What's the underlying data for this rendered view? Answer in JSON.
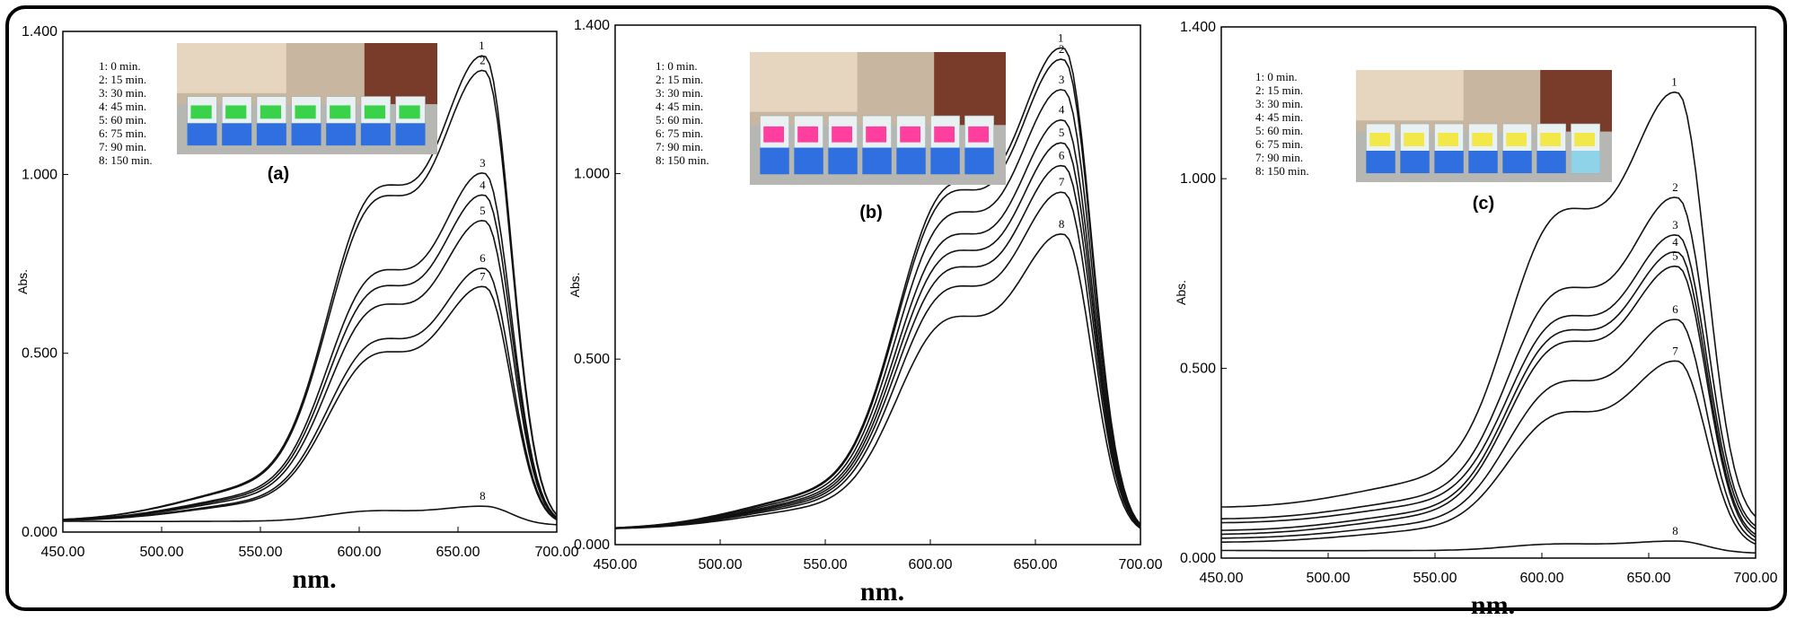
{
  "chart_data": [
    {
      "type": "line",
      "panel_label": "(a)",
      "xlabel": "nm.",
      "ylabel": "Abs.",
      "xlim": [
        450,
        700
      ],
      "ylim": [
        0,
        1.4
      ],
      "x_ticks": [
        "450.00",
        "500.00",
        "550.00",
        "600.00",
        "650.00",
        "700.00"
      ],
      "y_ticks": [
        "0.000",
        "0.500",
        "1.000",
        "1.400"
      ],
      "legend": [
        "1: 0 min.",
        "2: 15 min.",
        "3: 30 min.",
        "4: 45 min.",
        "5: 60 min.",
        "6: 75 min.",
        "7: 90 min.",
        "8: 150 min."
      ],
      "photo": {
        "label_color": "#3ad24a",
        "beakers": 7
      },
      "series": [
        {
          "name": "1",
          "peak": 1.31,
          "shoulder": 0.77,
          "base": 0.03
        },
        {
          "name": "2",
          "peak": 1.27,
          "shoulder": 0.74,
          "base": 0.03
        },
        {
          "name": "3",
          "peak": 0.99,
          "shoulder": 0.58,
          "base": 0.03
        },
        {
          "name": "4",
          "peak": 0.93,
          "shoulder": 0.55,
          "base": 0.03
        },
        {
          "name": "5",
          "peak": 0.86,
          "shoulder": 0.51,
          "base": 0.03
        },
        {
          "name": "6",
          "peak": 0.73,
          "shoulder": 0.43,
          "base": 0.03
        },
        {
          "name": "7",
          "peak": 0.68,
          "shoulder": 0.4,
          "base": 0.03
        },
        {
          "name": "8",
          "peak": 0.08,
          "shoulder": 0.05,
          "base": 0.03
        }
      ]
    },
    {
      "type": "line",
      "panel_label": "(b)",
      "xlabel": "nm.",
      "ylabel": "Abs.",
      "xlim": [
        450,
        700
      ],
      "ylim": [
        0,
        1.4
      ],
      "x_ticks": [
        "450.00",
        "500.00",
        "550.00",
        "600.00",
        "650.00",
        "700.00"
      ],
      "y_ticks": [
        "0.000",
        "0.500",
        "1.000",
        "1.400"
      ],
      "legend": [
        "1: 0 min.",
        "2: 15 min.",
        "3: 30 min.",
        "4: 45 min.",
        "5: 60 min.",
        "6: 75 min.",
        "7: 90 min.",
        "8: 150 min."
      ],
      "photo": {
        "label_color": "#ff3f9e",
        "beakers": 7
      },
      "series": [
        {
          "name": "1",
          "peak": 1.32,
          "shoulder": 0.78,
          "base": 0.04
        },
        {
          "name": "2",
          "peak": 1.29,
          "shoulder": 0.76,
          "base": 0.04
        },
        {
          "name": "3",
          "peak": 1.21,
          "shoulder": 0.72,
          "base": 0.04
        },
        {
          "name": "4",
          "peak": 1.13,
          "shoulder": 0.67,
          "base": 0.04
        },
        {
          "name": "5",
          "peak": 1.07,
          "shoulder": 0.63,
          "base": 0.04
        },
        {
          "name": "6",
          "peak": 1.01,
          "shoulder": 0.6,
          "base": 0.04
        },
        {
          "name": "7",
          "peak": 0.94,
          "shoulder": 0.56,
          "base": 0.04
        },
        {
          "name": "8",
          "peak": 0.83,
          "shoulder": 0.49,
          "base": 0.04
        }
      ]
    },
    {
      "type": "line",
      "panel_label": "(c)",
      "xlabel": "nm.",
      "ylabel": "Abs.",
      "xlim": [
        450,
        700
      ],
      "ylim": [
        0,
        1.4
      ],
      "x_ticks": [
        "450.00",
        "500.00",
        "550.00",
        "600.00",
        "650.00",
        "700.00"
      ],
      "y_ticks": [
        "0.000",
        "0.500",
        "1.000",
        "1.400"
      ],
      "legend": [
        "1: 0 min.",
        "2: 15 min.",
        "3: 30 min.",
        "4: 45 min.",
        "5: 60 min.",
        "6: 75 min.",
        "7: 90 min.",
        "8: 150 min."
      ],
      "photo": {
        "label_color": "#f2e84a",
        "beakers": 7
      },
      "series": [
        {
          "name": "1",
          "peak": 1.24,
          "shoulder": 0.74,
          "base": 0.13
        },
        {
          "name": "2",
          "peak": 0.96,
          "shoulder": 0.57,
          "base": 0.1
        },
        {
          "name": "3",
          "peak": 0.86,
          "shoulder": 0.51,
          "base": 0.09
        },
        {
          "name": "4",
          "peak": 0.81,
          "shoulder": 0.48,
          "base": 0.07
        },
        {
          "name": "5",
          "peak": 0.77,
          "shoulder": 0.46,
          "base": 0.06
        },
        {
          "name": "6",
          "peak": 0.63,
          "shoulder": 0.37,
          "base": 0.05
        },
        {
          "name": "7",
          "peak": 0.52,
          "shoulder": 0.31,
          "base": 0.04
        },
        {
          "name": "8",
          "peak": 0.05,
          "shoulder": 0.03,
          "base": 0.02
        }
      ]
    }
  ]
}
